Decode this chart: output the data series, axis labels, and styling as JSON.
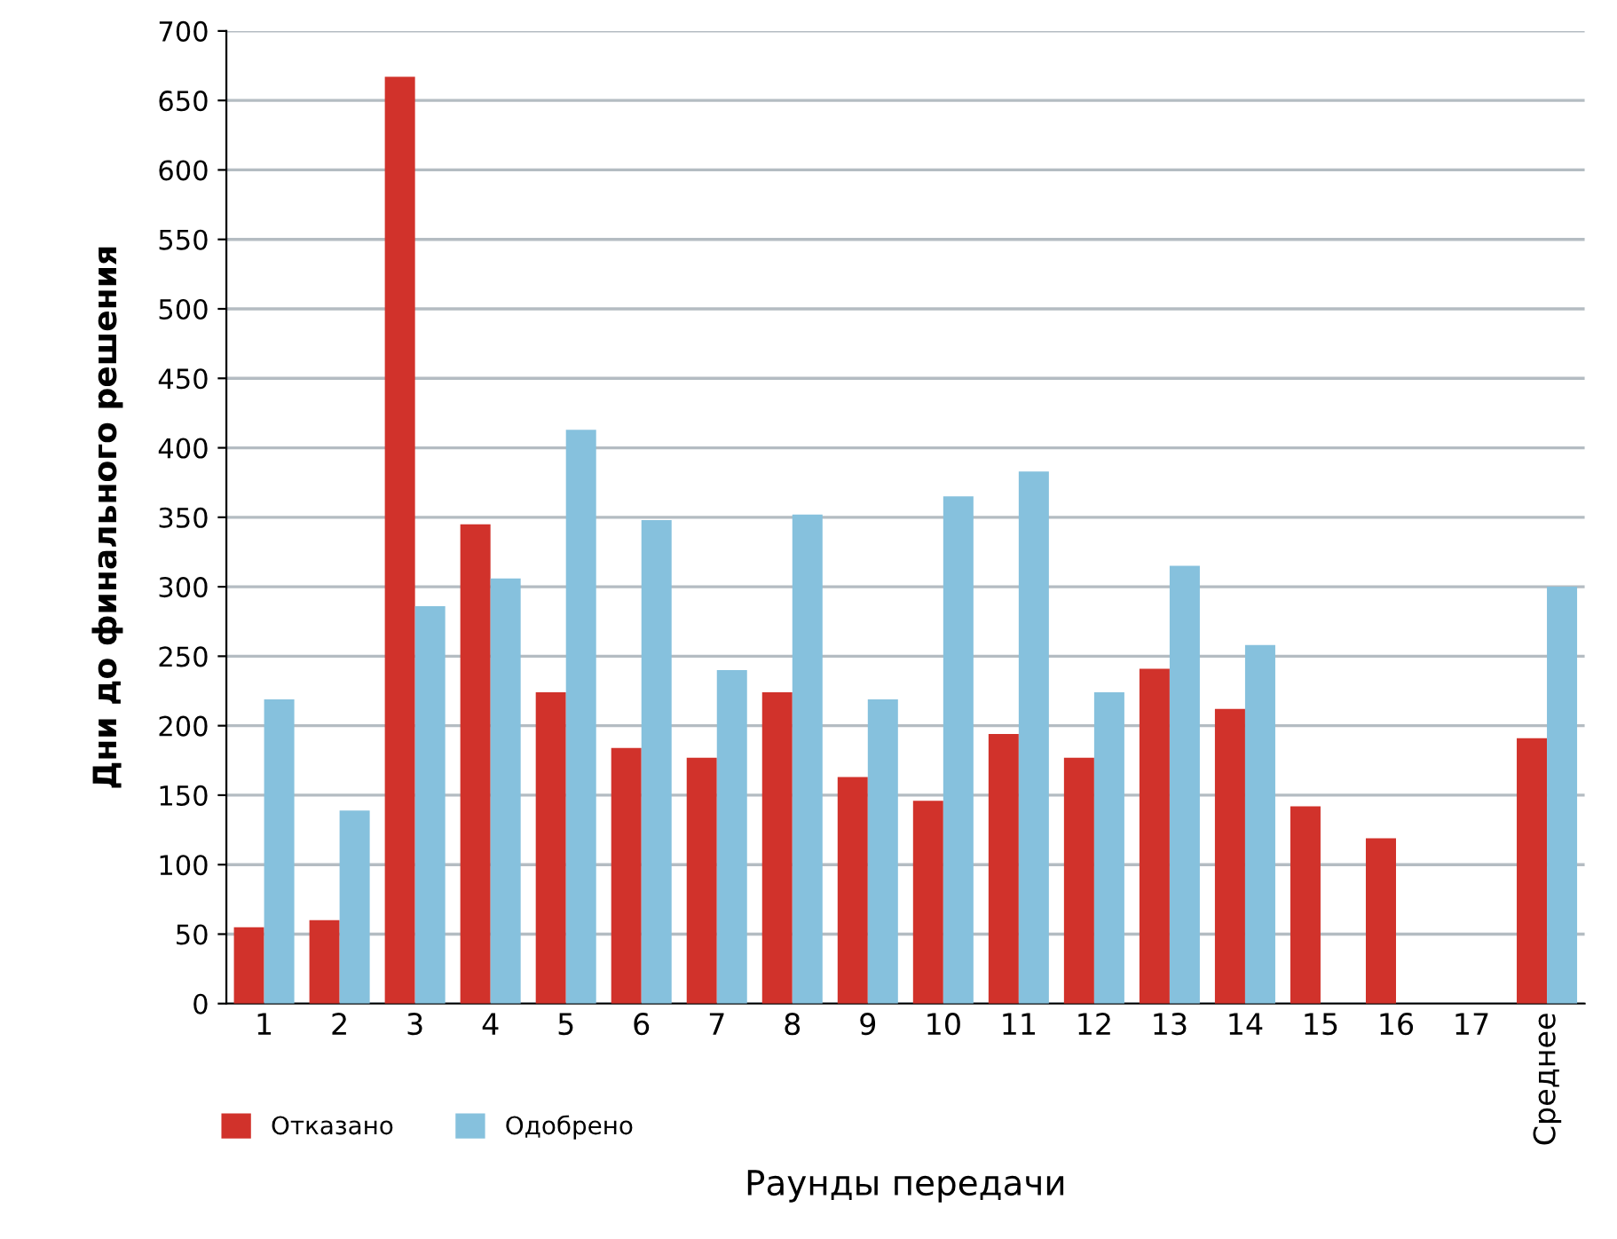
{
  "chart_data": {
    "type": "bar",
    "xlabel": "Раунды передачи",
    "ylabel": "Дни до финального решения",
    "categories": [
      "1",
      "2",
      "3",
      "4",
      "5",
      "6",
      "7",
      "8",
      "9",
      "10",
      "11",
      "12",
      "13",
      "14",
      "15",
      "16",
      "17",
      "Среднее"
    ],
    "series": [
      {
        "name": "Отказано",
        "color": "#d1322b",
        "values": [
          55,
          60,
          667,
          345,
          224,
          184,
          177,
          224,
          163,
          146,
          194,
          177,
          241,
          212,
          142,
          119,
          null,
          191
        ]
      },
      {
        "name": "Одобрено",
        "color": "#86c1dd",
        "values": [
          219,
          139,
          286,
          306,
          413,
          348,
          240,
          352,
          219,
          365,
          383,
          224,
          315,
          258,
          null,
          null,
          null,
          300
        ]
      }
    ],
    "ylim": [
      0,
      700
    ],
    "yticks": [
      0,
      50,
      100,
      150,
      200,
      250,
      300,
      350,
      400,
      450,
      500,
      550,
      600,
      650,
      700
    ],
    "grid": "y",
    "legend": "bottom left"
  }
}
